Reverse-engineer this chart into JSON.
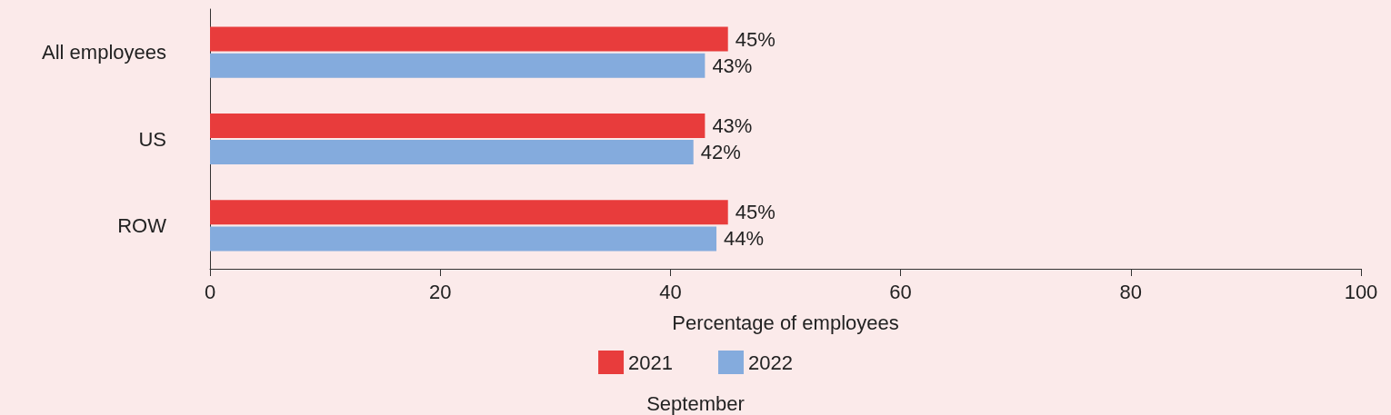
{
  "chart_data": {
    "type": "bar",
    "orientation": "horizontal",
    "xlabel": "Percentage of employees",
    "legend_title": "September",
    "categories": [
      "All employees",
      "US",
      "ROW"
    ],
    "series": [
      {
        "name": "2021",
        "color": "#e83c3c",
        "values": [
          45,
          43,
          45
        ],
        "value_labels": [
          "45%",
          "43%",
          "45%"
        ]
      },
      {
        "name": "2022",
        "color": "#84abdd",
        "values": [
          43,
          42,
          44
        ],
        "value_labels": [
          "43%",
          "42%",
          "44%"
        ]
      }
    ],
    "xlim": [
      0,
      100
    ],
    "xticks": [
      0,
      20,
      40,
      60,
      80,
      100
    ],
    "grid": false,
    "legend": "bottom"
  }
}
